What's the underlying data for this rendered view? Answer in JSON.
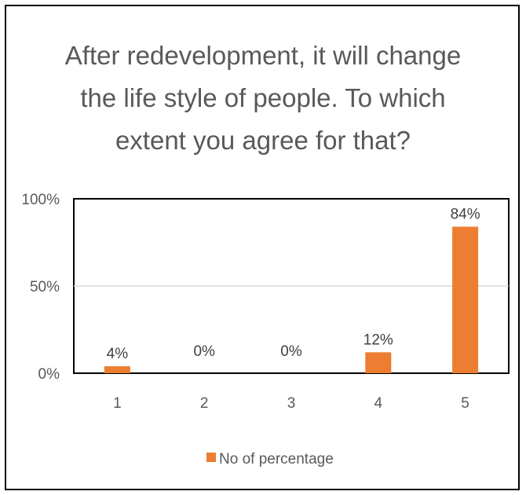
{
  "chart_data": {
    "type": "bar",
    "title": "After redevelopment, it will change\nthe life style of people. To which\nextent you agree for that?",
    "categories": [
      "1",
      "2",
      "3",
      "4",
      "5"
    ],
    "series": [
      {
        "name": "No of percentage",
        "values": [
          4,
          0,
          0,
          12,
          84
        ],
        "data_labels": [
          "4%",
          "0%",
          "0%",
          "12%",
          "84%"
        ],
        "color": "#ED7D31"
      }
    ],
    "y_ticks": [
      "0%",
      "50%",
      "100%"
    ],
    "ylim": [
      0,
      100
    ],
    "grid": true,
    "legend_position": "bottom"
  }
}
